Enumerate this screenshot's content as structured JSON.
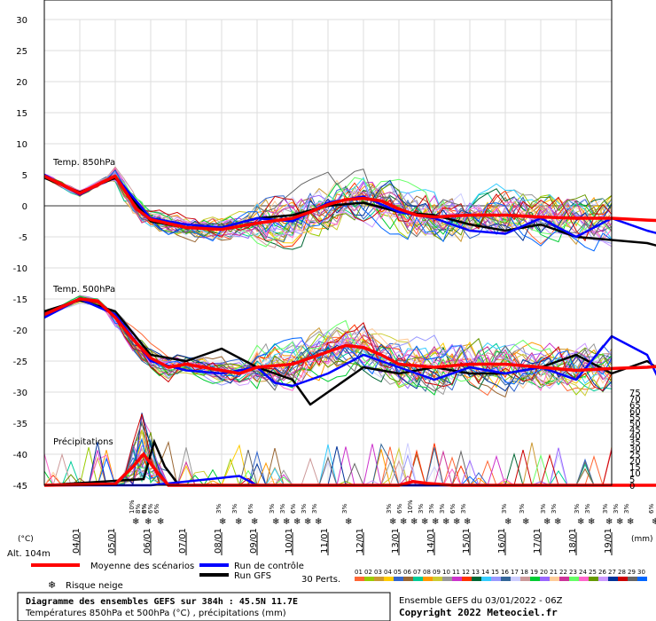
{
  "chart_data": {
    "type": "line",
    "left_axis": {
      "ticks": [
        "30",
        "25",
        "20",
        "15",
        "10",
        "5",
        "0",
        "-5",
        "-10",
        "-15",
        "-20",
        "-25",
        "-30",
        "-35",
        "-40",
        "-45"
      ],
      "unit": "(°C)"
    },
    "right_axis": {
      "ticks": [
        "75",
        "70",
        "65",
        "60",
        "55",
        "50",
        "45",
        "40",
        "35",
        "30",
        "25",
        "20",
        "15",
        "10",
        "5",
        "0"
      ],
      "unit": "(mm)"
    },
    "x_dates": [
      "04/01",
      "05/01",
      "06/01",
      "07/01",
      "08/01",
      "09/01",
      "10/01",
      "11/01",
      "12/01",
      "13/01",
      "14/01",
      "15/01",
      "16/01",
      "17/01",
      "18/01",
      "19/01"
    ],
    "altitude_label": "Alt. 104m",
    "panel_labels": {
      "t850": "Temp. 850hPa",
      "t500": "Temp. 500hPa",
      "precip": "Précipitations"
    },
    "snow_risk": [
      {
        "x": 6.1,
        "labels": [
          "10%",
          "8%",
          "6%"
        ]
      },
      {
        "x": 6.45,
        "labels": [
          "8%",
          "6%"
        ]
      },
      {
        "x": 6.8,
        "labels": [
          "6%"
        ]
      },
      {
        "x": 8.55,
        "labels": [
          "3%"
        ]
      },
      {
        "x": 9.0,
        "labels": [
          "3%"
        ]
      },
      {
        "x": 9.45,
        "labels": [
          "6%"
        ]
      },
      {
        "x": 10.05,
        "labels": [
          "3%"
        ]
      },
      {
        "x": 10.35,
        "labels": [
          "3%"
        ]
      },
      {
        "x": 10.65,
        "labels": [
          "6%"
        ]
      },
      {
        "x": 10.95,
        "labels": [
          "3%"
        ]
      },
      {
        "x": 11.25,
        "labels": [
          "3%"
        ]
      },
      {
        "x": 12.1,
        "labels": [
          "3%"
        ]
      },
      {
        "x": 13.35,
        "labels": [
          "3%"
        ]
      },
      {
        "x": 13.65,
        "labels": [
          "6%"
        ]
      },
      {
        "x": 13.95,
        "labels": [
          "10%"
        ]
      },
      {
        "x": 14.25,
        "labels": [
          "3%"
        ]
      },
      {
        "x": 14.55,
        "labels": [
          "3%"
        ]
      },
      {
        "x": 14.85,
        "labels": [
          "3%"
        ]
      },
      {
        "x": 15.15,
        "labels": [
          "6%"
        ]
      },
      {
        "x": 15.45,
        "labels": [
          "3%"
        ]
      },
      {
        "x": 16.6,
        "labels": [
          "3%"
        ]
      },
      {
        "x": 17.1,
        "labels": [
          "3%"
        ]
      },
      {
        "x": 17.7,
        "labels": [
          "3%"
        ]
      },
      {
        "x": 18.0,
        "labels": [
          "3%"
        ]
      },
      {
        "x": 18.65,
        "labels": [
          "3%"
        ]
      },
      {
        "x": 18.95,
        "labels": [
          "3%"
        ]
      },
      {
        "x": 19.45,
        "labels": [
          "3%"
        ]
      },
      {
        "x": 19.75,
        "labels": [
          "3%"
        ]
      },
      {
        "x": 20.05,
        "labels": [
          "3%"
        ]
      },
      {
        "x": 20.75,
        "labels": [
          "6%"
        ]
      },
      {
        "x": 21.05,
        "labels": [
          "3%"
        ]
      }
    ],
    "series": [
      {
        "name": "Moyenne des scénarios",
        "color": "#ff0000",
        "t850": [
          [
            3,
            4.8
          ],
          [
            4,
            2
          ],
          [
            5,
            4.8
          ],
          [
            5.6,
            -0.5
          ],
          [
            6,
            -2.2
          ],
          [
            7,
            -3.5
          ],
          [
            8,
            -3.8
          ],
          [
            9,
            -2.8
          ],
          [
            10,
            -2
          ],
          [
            10.5,
            -1
          ],
          [
            11,
            0.2
          ],
          [
            11.5,
            1
          ],
          [
            12,
            1.2
          ],
          [
            12.5,
            0.8
          ],
          [
            13,
            -0.5
          ],
          [
            13.5,
            -1.5
          ],
          [
            14,
            -1.8
          ],
          [
            15,
            -1.5
          ],
          [
            16,
            -1.5
          ],
          [
            17,
            -1.8
          ],
          [
            18,
            -2
          ],
          [
            19,
            -2
          ],
          [
            20,
            -2.3
          ],
          [
            21,
            -2.5
          ]
        ],
        "t500": [
          [
            3,
            -17.5
          ],
          [
            4,
            -15
          ],
          [
            4.5,
            -15.3
          ],
          [
            5,
            -18
          ],
          [
            5.5,
            -21.5
          ],
          [
            6,
            -24.5
          ],
          [
            6.5,
            -26
          ],
          [
            7,
            -25.5
          ],
          [
            8,
            -26.5
          ],
          [
            8.5,
            -27
          ],
          [
            9,
            -26
          ],
          [
            10,
            -25.5
          ],
          [
            11,
            -23.5
          ],
          [
            11.5,
            -22.5
          ],
          [
            12,
            -22.8
          ],
          [
            12.5,
            -24
          ],
          [
            13,
            -25.5
          ],
          [
            14,
            -26
          ],
          [
            15,
            -25.5
          ],
          [
            16,
            -25.5
          ],
          [
            17,
            -26
          ],
          [
            18,
            -26.5
          ],
          [
            19,
            -26.2
          ],
          [
            20,
            -26
          ],
          [
            21,
            -25.5
          ]
        ],
        "precip": [
          [
            3,
            0
          ],
          [
            5,
            0.2
          ],
          [
            5.5,
            3
          ],
          [
            5.8,
            5
          ],
          [
            6.2,
            2
          ],
          [
            6.5,
            0
          ],
          [
            10,
            0
          ],
          [
            13,
            0
          ],
          [
            13.4,
            0.6
          ],
          [
            13.8,
            0.3
          ],
          [
            14.5,
            0
          ],
          [
            21,
            0
          ]
        ]
      },
      {
        "name": "Run de contrôle",
        "color": "#0000ff",
        "t850": [
          [
            3,
            5
          ],
          [
            4,
            1.8
          ],
          [
            5,
            4.8
          ],
          [
            6,
            -2
          ],
          [
            7,
            -3
          ],
          [
            8,
            -3.5
          ],
          [
            9,
            -2
          ],
          [
            10,
            -2.5
          ],
          [
            11,
            0.5
          ],
          [
            12,
            1.5
          ],
          [
            13,
            -1
          ],
          [
            14,
            -2
          ],
          [
            15,
            -4
          ],
          [
            16,
            -4.5
          ],
          [
            17,
            -2
          ],
          [
            18,
            -5
          ],
          [
            19,
            -2
          ],
          [
            20,
            -4
          ],
          [
            21,
            -5.5
          ]
        ],
        "t500": [
          [
            3,
            -18
          ],
          [
            4,
            -15
          ],
          [
            5,
            -17.5
          ],
          [
            6,
            -25
          ],
          [
            7,
            -26.5
          ],
          [
            8,
            -27
          ],
          [
            9,
            -26
          ],
          [
            9.5,
            -28.5
          ],
          [
            10,
            -29
          ],
          [
            11,
            -27
          ],
          [
            12,
            -24
          ],
          [
            13,
            -26
          ],
          [
            14,
            -28
          ],
          [
            15,
            -26
          ],
          [
            16,
            -27
          ],
          [
            17,
            -26
          ],
          [
            18,
            -28
          ],
          [
            19,
            -21
          ],
          [
            20,
            -24
          ],
          [
            21,
            -36
          ]
        ],
        "precip": [
          [
            3,
            0
          ],
          [
            6,
            0
          ],
          [
            8.5,
            1.5
          ],
          [
            9,
            0
          ],
          [
            21,
            0
          ]
        ]
      },
      {
        "name": "Run GFS",
        "color": "#000000",
        "t850": [
          [
            3,
            4.5
          ],
          [
            4,
            2.2
          ],
          [
            5,
            4.5
          ],
          [
            6,
            -2.5
          ],
          [
            7,
            -3.5
          ],
          [
            8,
            -3.5
          ],
          [
            9,
            -2
          ],
          [
            10,
            -1.5
          ],
          [
            11,
            0
          ],
          [
            12,
            0.5
          ],
          [
            13,
            -1
          ],
          [
            14,
            -1.5
          ],
          [
            15,
            -3
          ],
          [
            16,
            -4
          ],
          [
            17,
            -3
          ],
          [
            18,
            -5
          ],
          [
            19,
            -5.5
          ],
          [
            20,
            -6
          ],
          [
            21,
            -7.5
          ]
        ],
        "t500": [
          [
            3,
            -17
          ],
          [
            4,
            -15.2
          ],
          [
            5,
            -17
          ],
          [
            6,
            -24
          ],
          [
            7,
            -25
          ],
          [
            8,
            -23
          ],
          [
            9,
            -26
          ],
          [
            10,
            -28
          ],
          [
            10.5,
            -32
          ],
          [
            11,
            -30
          ],
          [
            12,
            -26
          ],
          [
            13,
            -27
          ],
          [
            14,
            -26
          ],
          [
            15,
            -27
          ],
          [
            16,
            -27
          ],
          [
            17,
            -26
          ],
          [
            18,
            -24
          ],
          [
            19,
            -27
          ],
          [
            20,
            -25
          ],
          [
            21,
            -29
          ]
        ],
        "precip": [
          [
            3,
            0
          ],
          [
            5.8,
            1
          ],
          [
            6.1,
            7
          ],
          [
            6.4,
            3
          ],
          [
            6.8,
            0
          ],
          [
            21,
            0
          ]
        ]
      }
    ]
  },
  "legend": {
    "mean": "Moyenne des scénarios",
    "control": "Run de contrôle",
    "gfs": "Run GFS",
    "snow": "Risque neige",
    "perts": "30 Perts."
  },
  "perturbations": {
    "labels": [
      "01",
      "02",
      "03",
      "04",
      "05",
      "06",
      "07",
      "08",
      "09",
      "10",
      "11",
      "12",
      "13",
      "14",
      "15",
      "16",
      "17",
      "18",
      "19",
      "20",
      "21",
      "22",
      "23",
      "24",
      "25",
      "26",
      "27",
      "28",
      "29",
      "30"
    ],
    "colors": [
      "#ff6633",
      "#99cc00",
      "#cc9933",
      "#ffcc00",
      "#3366cc",
      "#996633",
      "#00cc99",
      "#ff9900",
      "#cccc33",
      "#999999",
      "#cc33cc",
      "#ff3300",
      "#006633",
      "#33ccff",
      "#9999ff",
      "#336699",
      "#ccccff",
      "#cc9999",
      "#00cc33",
      "#9966ff",
      "#ffcc99",
      "#cc3399",
      "#66ff66",
      "#ff66cc",
      "#669900",
      "#cc99ff",
      "#003399",
      "#cc0000",
      "#666666",
      "#0066ff"
    ]
  },
  "footer": {
    "title": "Diagramme des ensembles GEFS sur 384h : 45.5N 11.7E",
    "subtitle": "Températures 850hPa et 500hPa (°C) , précipitations (mm)",
    "run_info": "Ensemble GEFS du 03/01/2022 - 06Z",
    "copyright": "Copyright 2022 Meteociel.fr"
  }
}
